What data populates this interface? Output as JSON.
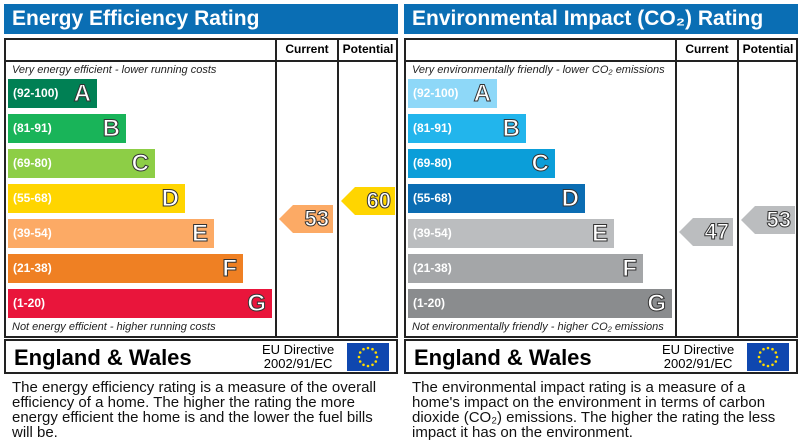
{
  "chart_data": [
    {
      "type": "bar",
      "title": "Energy Efficiency Rating",
      "col_current": "Current",
      "col_potential": "Potential",
      "top_note": "Very energy efficient - lower running costs",
      "bottom_note": "Not energy efficient - higher running costs",
      "bands": [
        {
          "range": "(92-100)",
          "letter": "A",
          "color": "#008054"
        },
        {
          "range": "(81-91)",
          "letter": "B",
          "color": "#19b459"
        },
        {
          "range": "(69-80)",
          "letter": "C",
          "color": "#8dce46"
        },
        {
          "range": "(55-68)",
          "letter": "D",
          "color": "#ffd500"
        },
        {
          "range": "(39-54)",
          "letter": "E",
          "color": "#fcaa65"
        },
        {
          "range": "(21-38)",
          "letter": "F",
          "color": "#ef8023"
        },
        {
          "range": "(1-20)",
          "letter": "G",
          "color": "#e9153b"
        }
      ],
      "current": {
        "value": "53",
        "band": "E",
        "color": "#fcaa65"
      },
      "potential": {
        "value": "60",
        "band": "D",
        "color": "#ffd500"
      },
      "region": "England & Wales",
      "directive": "EU Directive",
      "directive_code": "2002/91/EC",
      "description": "The energy efficiency rating is a measure of the overall efficiency of a home. The higher the rating the more energy efficient the home is and the lower the fuel bills will be."
    },
    {
      "type": "bar",
      "title": "Environmental Impact (CO₂) Rating",
      "col_current": "Current",
      "col_potential": "Potential",
      "top_note": "Very environmentally friendly - lower CO₂ emissions",
      "bottom_note": "Not environmentally friendly - higher CO₂ emissions",
      "bands": [
        {
          "range": "(92-100)",
          "letter": "A",
          "color": "#8ed8f8"
        },
        {
          "range": "(81-91)",
          "letter": "B",
          "color": "#22b5ec"
        },
        {
          "range": "(69-80)",
          "letter": "C",
          "color": "#0b9ed9"
        },
        {
          "range": "(55-68)",
          "letter": "D",
          "color": "#0b6db3"
        },
        {
          "range": "(39-54)",
          "letter": "E",
          "color": "#bbbdbf"
        },
        {
          "range": "(21-38)",
          "letter": "F",
          "color": "#a4a6a8"
        },
        {
          "range": "(1-20)",
          "letter": "G",
          "color": "#8a8c8e"
        }
      ],
      "current": {
        "value": "47",
        "band": "E",
        "color": "#bbbdbf"
      },
      "potential": {
        "value": "53",
        "band": "E",
        "color": "#bbbdbf"
      },
      "region": "England & Wales",
      "directive": "EU Directive",
      "directive_code": "2002/91/EC",
      "description": "The environmental impact rating is a measure of a home's impact on the environment in terms of carbon dioxide (CO₂) emissions. The higher the rating the less impact it has on the environment."
    }
  ]
}
